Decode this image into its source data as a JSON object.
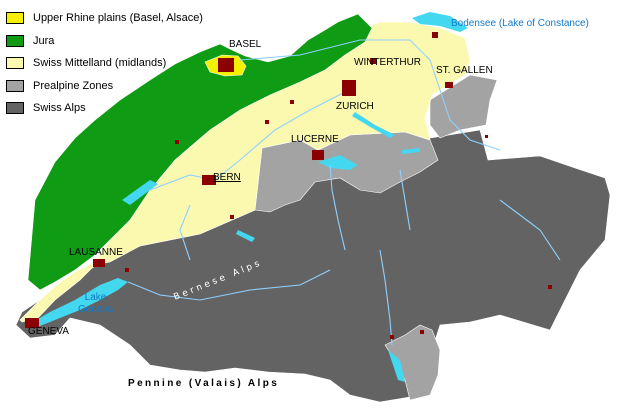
{
  "legend": [
    {
      "label": "Upper Rhine plains (Basel, Alsace)",
      "color": "#f4f000"
    },
    {
      "label": "Jura",
      "color": "#0f9b14"
    },
    {
      "label": "Swiss Mittelland (midlands)",
      "color": "#fbf9b0"
    },
    {
      "label": "Prealpine Zones",
      "color": "#a3a3a3"
    },
    {
      "label": "Swiss Alps",
      "color": "#636363"
    }
  ],
  "colors": {
    "alps": "#636363",
    "prealps": "#a3a3a3",
    "mittelland": "#fbf9b0",
    "jura": "#0f9b14",
    "rhine": "#f4f000",
    "water": "#44d7f0",
    "river": "#8fd0ff",
    "city": "#8b0000"
  },
  "cities": {
    "basel": "BASEL",
    "winterthur": "WINTERTHUR",
    "st_gallen": "ST. GALLEN",
    "zurich": "ZURICH",
    "lucerne": "LUCERNE",
    "bern": "BERN",
    "lausanne": "LAUSANNE",
    "geneva": "GENEVA"
  },
  "water": {
    "bodensee": "Bodensee (Lake of Constance)",
    "lake_geneva_line1": "Lake",
    "lake_geneva_line2": "Geneva"
  },
  "ranges": {
    "bernese_alps": "Bernese Alps",
    "pennine_alps": "Pennine (Valais) Alps"
  }
}
